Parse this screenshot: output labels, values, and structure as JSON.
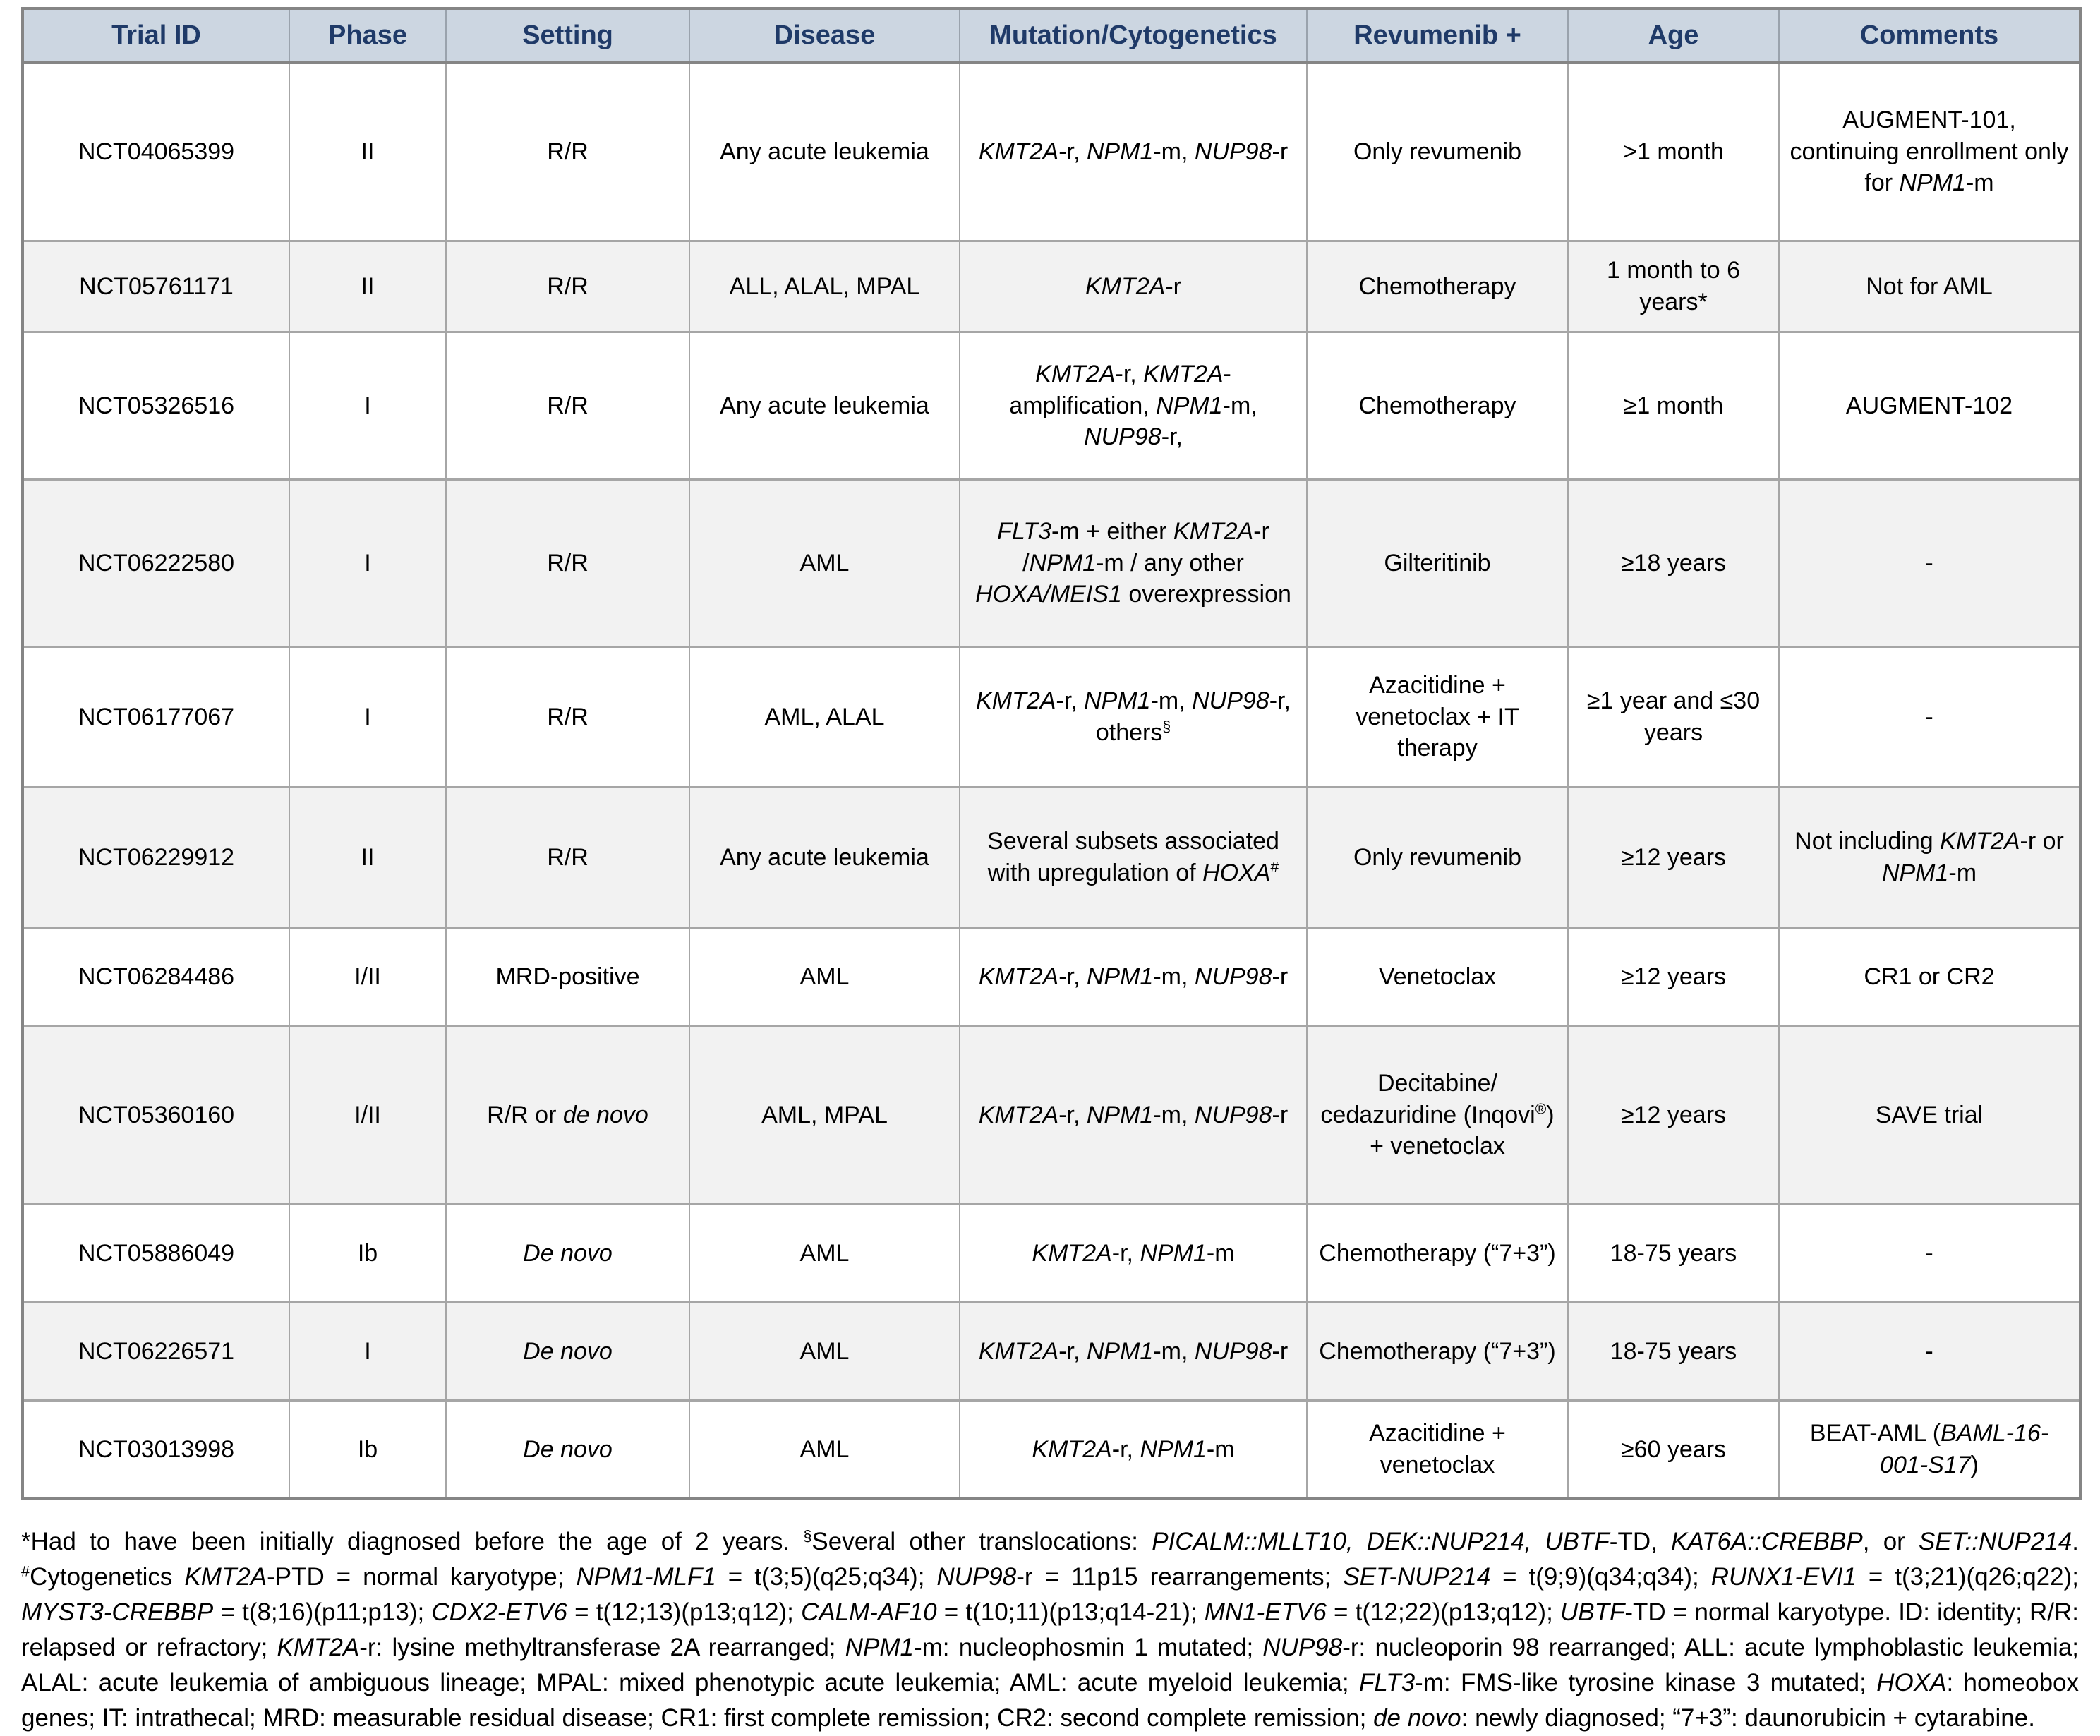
{
  "colors": {
    "header_bg": "#ccd6e1",
    "header_text": "#1f3a68",
    "row_alt_bg": "#f2f2f2",
    "border_inner": "#a6a6a6",
    "border_outer": "#858585"
  },
  "table": {
    "columns": [
      {
        "key": "trial_id",
        "label": "Trial ID"
      },
      {
        "key": "phase",
        "label": "Phase"
      },
      {
        "key": "setting",
        "label": "Setting"
      },
      {
        "key": "disease",
        "label": "Disease"
      },
      {
        "key": "mutation",
        "label": "Mutation/Cytogenetics"
      },
      {
        "key": "revumenib",
        "label": "Revumenib +"
      },
      {
        "key": "age",
        "label": "Age"
      },
      {
        "key": "comments",
        "label": "Comments"
      }
    ],
    "rows": [
      {
        "trial_id": "NCT04065399",
        "phase": "II",
        "setting": "R/R",
        "disease": "Any acute leukemia",
        "mutation": "[i]KMT2A[/i]-r, [i]NPM1[/i]-m, [i]NUP98[/i]-r",
        "revumenib": "Only revumenib",
        "age": ">1 month",
        "comments": "AUGMENT-101, continuing enrollment only for [i]NPM1[/i]-m"
      },
      {
        "trial_id": "NCT05761171",
        "phase": "II",
        "setting": "R/R",
        "disease": "ALL, ALAL, MPAL",
        "mutation": "[i]KMT2A[/i]-r",
        "revumenib": "Chemotherapy",
        "age": "1 month to 6 years*",
        "comments": "Not for AML"
      },
      {
        "trial_id": "NCT05326516",
        "phase": "I",
        "setting": "R/R",
        "disease": "Any acute leukemia",
        "mutation": "[i]KMT2A[/i]-r, [i]KMT2A[/i]-amplification, [i]NPM1[/i]-m, [i]NUP98[/i]-r,",
        "revumenib": "Chemotherapy",
        "age": "≥1 month",
        "comments": "AUGMENT-102"
      },
      {
        "trial_id": "NCT06222580",
        "phase": "I",
        "setting": "R/R",
        "disease": "AML",
        "mutation": "[i]FLT3[/i]-m + either [i]KMT2A[/i]-r /[i]NPM1[/i]-m / any other [i]HOXA/MEIS1[/i] overexpression",
        "revumenib": "Gilteritinib",
        "age": "≥18 years",
        "comments": "-"
      },
      {
        "trial_id": "NCT06177067",
        "phase": "I",
        "setting": "R/R",
        "disease": "AML, ALAL",
        "mutation": "[i]KMT2A[/i]-r, [i]NPM1[/i]-m, [i]NUP98[/i]-r, others[sup]§[/sup]",
        "revumenib": "Azacitidine + venetoclax + IT therapy",
        "age": "≥1 year and ≤30 years",
        "comments": "-"
      },
      {
        "trial_id": "NCT06229912",
        "phase": "II",
        "setting": "R/R",
        "disease": "Any acute leukemia",
        "mutation": "Several subsets associated with upregulation of [i]HOXA[/i][sup]#[/sup]",
        "revumenib": "Only revumenib",
        "age": "≥12 years",
        "comments": "Not including [i]KMT2A[/i]-r or [i]NPM1[/i]-m"
      },
      {
        "trial_id": "NCT06284486",
        "phase": "I/II",
        "setting": "MRD-positive",
        "disease": "AML",
        "mutation": "[i]KMT2A[/i]-r, [i]NPM1[/i]-m, [i]NUP98[/i]-r",
        "revumenib": "Venetoclax",
        "age": "≥12 years",
        "comments": "CR1 or CR2"
      },
      {
        "trial_id": "NCT05360160",
        "phase": "I/II",
        "setting": "R/R or [i]de novo[/i]",
        "disease": "AML, MPAL",
        "mutation": "[i]KMT2A[/i]-r, [i]NPM1[/i]-m, [i]NUP98[/i]-r",
        "revumenib": "Decitabine/[br]cedazuridine (Inqovi[sup]®[/sup]) + venetoclax",
        "age": "≥12 years",
        "comments": "SAVE trial"
      },
      {
        "trial_id": "NCT05886049",
        "phase": "Ib",
        "setting": "[i]De novo[/i]",
        "disease": "AML",
        "mutation": "[i]KMT2A[/i]-r, [i]NPM1[/i]-m",
        "revumenib": "Chemotherapy (“7+3”)",
        "age": "18-75 years",
        "comments": "-"
      },
      {
        "trial_id": "NCT06226571",
        "phase": "I",
        "setting": "[i]De novo[/i]",
        "disease": "AML",
        "mutation": "[i]KMT2A[/i]-r, [i]NPM1[/i]-m, [i]NUP98[/i]-r",
        "revumenib": "Chemotherapy (“7+3”)",
        "age": "18-75 years",
        "comments": "-"
      },
      {
        "trial_id": "NCT03013998",
        "phase": "Ib",
        "setting": "[i]De novo[/i]",
        "disease": "AML",
        "mutation": "[i]KMT2A[/i]-r, [i]NPM1[/i]-m",
        "revumenib": "Azacitidine + venetoclax",
        "age": "≥60 years",
        "comments": "BEAT-AML ([i]BAML-16-001-S17[/i])"
      }
    ]
  },
  "footnote": {
    "text": "*Had to have been initially diagnosed before the age of 2 years. [sup]§[/sup]Several other translocations: [i]PICALM::MLLT10, DEK::NUP214, UBTF[/i]-TD, [i]KAT6A::CREBBP[/i], or [i]SET::NUP214[/i]. [sup]#[/sup]Cytogenetics [i]KMT2A[/i]-PTD = normal karyotype; [i]NPM1-MLF1[/i] = t(3;5)(q25;q34); [i]NUP98[/i]-r = 11p15 rearrangements; [i]SET-NUP214[/i] = t(9;9)(q34;q34); [i]RUNX1-EVI1[/i] = t(3;21)(q26;q22); [i]MYST3-CREBBP[/i] = t(8;16)(p11;p13); [i]CDX2-ETV6[/i] = t(12;13)(p13;q12); [i]CALM-AF10[/i] = t(10;11)(p13;q14-21); [i]MN1-ETV6[/i] = t(12;22)(p13;q12); [i]UBTF[/i]-TD = normal karyotype. ID: identity; R/R: relapsed or refractory; [i]KMT2A[/i]-r: lysine methyltransferase 2A rearranged; [i]NPM1[/i]-m: nucleophosmin 1 mutated; [i]NUP98[/i]-r: nucleoporin 98 rearranged; ALL: acute lymphoblastic leukemia; ALAL: acute leukemia of ambiguous lineage; MPAL: mixed phenotypic acute leukemia; AML: acute myeloid leukemia; [i]FLT3[/i]-m: FMS-like tyrosine kinase 3 mutated; [i]HOXA[/i]: homeobox genes; IT: intrathecal; MRD: measurable residual disease; CR1: first complete remission; CR2: second complete remission; [i]de novo[/i]: newly diagnosed; “7+3”: daunorubicin + cytarabine."
  }
}
